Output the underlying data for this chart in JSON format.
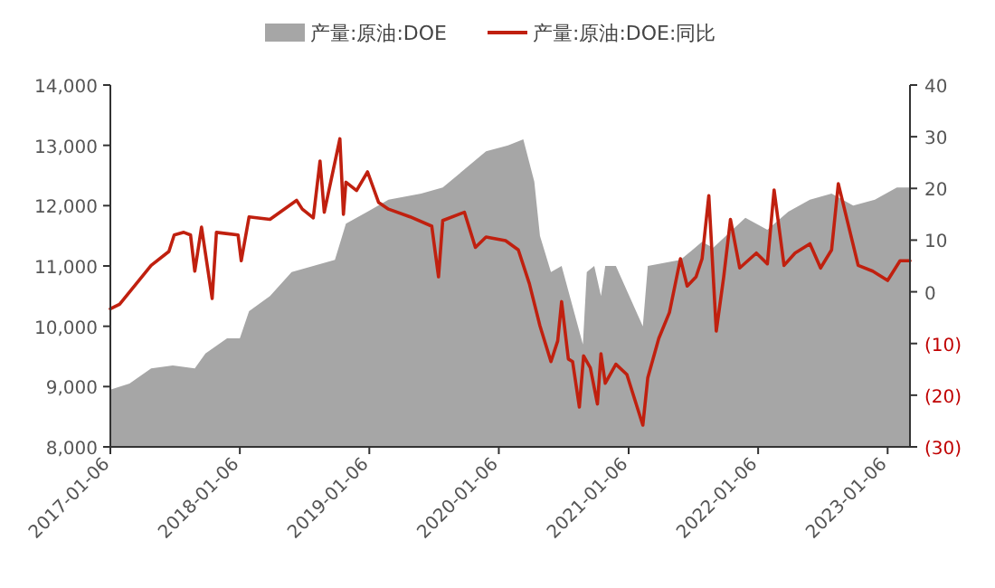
{
  "chart_data": {
    "type": "area",
    "legend": "top",
    "xlim": [
      "2017-01-06",
      "2023-03-10"
    ],
    "xticks": [
      "2017-01-06",
      "2018-01-06",
      "2019-01-06",
      "2020-01-06",
      "2021-01-06",
      "2022-01-06",
      "2023-01-06"
    ],
    "ylim": [
      8000,
      14000
    ],
    "yticks": [
      {
        "value": 8000,
        "label": "8,000"
      },
      {
        "value": 9000,
        "label": "9,000"
      },
      {
        "value": 10000,
        "label": "10,000"
      },
      {
        "value": 11000,
        "label": "11,000"
      },
      {
        "value": 12000,
        "label": "12,000"
      },
      {
        "value": 13000,
        "label": "13,000"
      },
      {
        "value": 14000,
        "label": "14,000"
      }
    ],
    "y2lim": [
      -30,
      40
    ],
    "y2ticks": [
      {
        "value": -30,
        "label": "(30)"
      },
      {
        "value": -20,
        "label": "(20)"
      },
      {
        "value": -10,
        "label": "(10)"
      },
      0,
      10,
      20,
      30,
      40
    ],
    "series": [
      {
        "name": "产量:原油:DOE",
        "type": "area",
        "color": "#a6a6a6",
        "x": [
          "2017-01-06",
          "2017-03-01",
          "2017-05-01",
          "2017-07-01",
          "2017-09-01",
          "2017-10-01",
          "2017-12-01",
          "2018-01-06",
          "2018-02-01",
          "2018-04-01",
          "2018-06-01",
          "2018-08-01",
          "2018-10-01",
          "2018-11-01",
          "2019-01-01",
          "2019-03-01",
          "2019-06-01",
          "2019-08-01",
          "2019-10-01",
          "2019-12-01",
          "2020-02-01",
          "2020-03-15",
          "2020-04-15",
          "2020-05-01",
          "2020-06-01",
          "2020-07-01",
          "2020-08-30",
          "2020-09-10",
          "2020-10-01",
          "2020-10-20",
          "2020-11-01",
          "2020-12-01",
          "2021-02-15",
          "2021-03-01",
          "2021-06-01",
          "2021-08-01",
          "2021-09-01",
          "2021-12-01",
          "2022-02-01",
          "2022-04-01",
          "2022-06-01",
          "2022-08-01",
          "2022-10-01",
          "2022-12-01",
          "2023-02-01",
          "2023-03-10"
        ],
        "values": [
          8950,
          9050,
          9300,
          9350,
          9300,
          9550,
          9800,
          9800,
          10250,
          10500,
          10900,
          11000,
          11100,
          11700,
          11900,
          12100,
          12200,
          12300,
          12600,
          12900,
          13000,
          13100,
          12400,
          11500,
          10900,
          11000,
          9700,
          10900,
          11000,
          10500,
          11000,
          11000,
          10000,
          11000,
          11100,
          11400,
          11300,
          11800,
          11600,
          11900,
          12100,
          12200,
          12000,
          12100,
          12300,
          12300
        ]
      },
      {
        "name": "产量:原油:DOE:同比",
        "type": "line",
        "axis": "y2",
        "color": "#c0200f",
        "x": [
          "2017-01-06",
          "2017-02-01",
          "2017-05-01",
          "2017-06-20",
          "2017-07-05",
          "2017-08-01",
          "2017-08-20",
          "2017-09-01",
          "2017-09-20",
          "2017-10-20",
          "2017-11-01",
          "2018-01-01",
          "2018-01-10",
          "2018-02-01",
          "2018-04-01",
          "2018-06-15",
          "2018-07-01",
          "2018-08-01",
          "2018-08-20",
          "2018-09-01",
          "2018-10-15",
          "2018-10-25",
          "2018-11-01",
          "2018-12-01",
          "2019-01-01",
          "2019-02-01",
          "2019-03-01",
          "2019-05-01",
          "2019-07-01",
          "2019-07-20",
          "2019-08-01",
          "2019-10-01",
          "2019-11-01",
          "2019-12-01",
          "2020-01-25",
          "2020-03-01",
          "2020-04-01",
          "2020-05-01",
          "2020-06-01",
          "2020-06-20",
          "2020-07-01",
          "2020-07-20",
          "2020-08-01",
          "2020-08-20",
          "2020-09-01",
          "2020-09-20",
          "2020-10-10",
          "2020-10-20",
          "2020-11-01",
          "2020-12-01",
          "2021-01-01",
          "2021-02-15",
          "2021-03-01",
          "2021-04-01",
          "2021-05-01",
          "2021-06-01",
          "2021-06-20",
          "2021-07-15",
          "2021-08-01",
          "2021-08-20",
          "2021-09-10",
          "2021-10-01",
          "2021-10-20",
          "2021-11-15",
          "2022-01-01",
          "2022-02-01",
          "2022-02-20",
          "2022-03-20",
          "2022-04-20",
          "2022-06-01",
          "2022-07-01",
          "2022-08-01",
          "2022-08-20",
          "2022-10-15",
          "2022-11-25",
          "2023-01-06",
          "2023-02-10",
          "2023-03-10"
        ],
        "values": [
          -3.3,
          -2.4,
          5.1,
          7.8,
          11,
          11.5,
          11,
          4,
          12.5,
          -1.3,
          11.5,
          11,
          6,
          14.5,
          14,
          17.7,
          16,
          14.3,
          25.3,
          15.4,
          29.6,
          15,
          21.2,
          19.6,
          23.2,
          17.3,
          16,
          14.5,
          12.7,
          2.9,
          13.8,
          15.4,
          8.6,
          10.6,
          9.9,
          8.1,
          1.6,
          -6.6,
          -13.5,
          -9.5,
          -1.9,
          -13,
          -13.5,
          -22.3,
          -12.4,
          -14.7,
          -21.7,
          -12,
          -17.7,
          -14,
          -16,
          -25.8,
          -16.6,
          -9,
          -4,
          6.4,
          1.1,
          2.9,
          6.4,
          18.6,
          -7.6,
          2.9,
          14,
          4.6,
          7.5,
          5.4,
          19.7,
          5.1,
          7.5,
          9.3,
          4.6,
          8.1,
          20.9,
          5.1,
          4,
          2.2,
          6,
          6
        ]
      }
    ]
  }
}
